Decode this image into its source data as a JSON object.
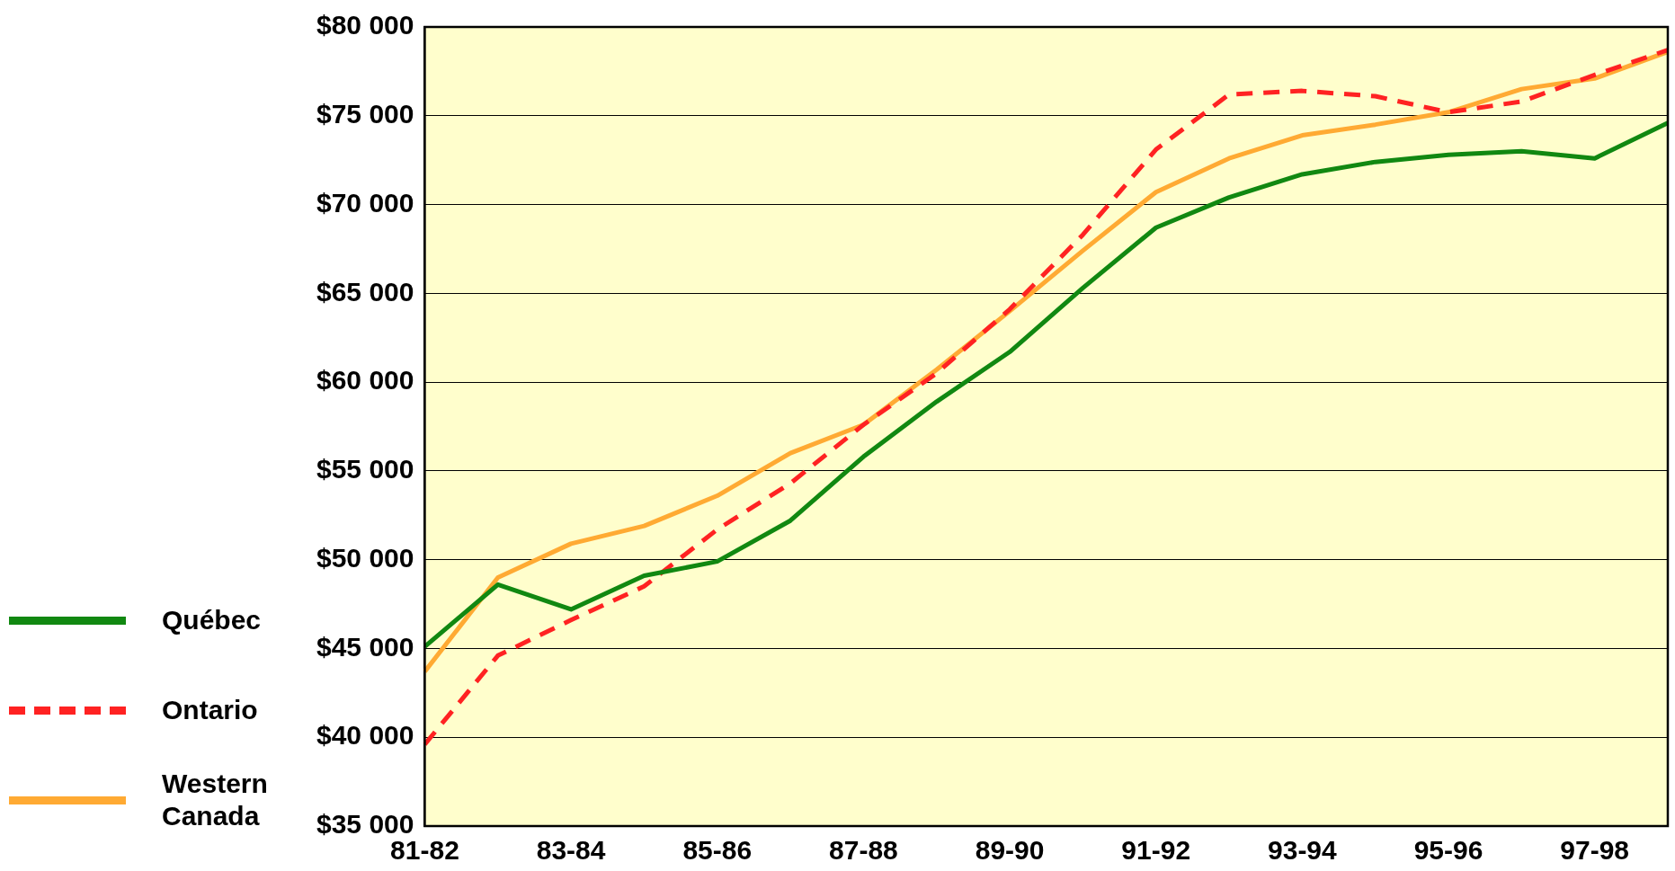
{
  "chart_data": {
    "type": "line",
    "categories": [
      "81-82",
      null,
      "83-84",
      null,
      "85-86",
      null,
      "87-88",
      null,
      "89-90",
      null,
      "91-92",
      null,
      "93-94",
      null,
      "95-96",
      null,
      "97-98",
      null
    ],
    "series": [
      {
        "name": "Québec",
        "color": "#118811",
        "line_style": "solid",
        "values": [
          45100,
          48600,
          47200,
          49100,
          49900,
          52200,
          55800,
          58900,
          61700,
          65300,
          68700,
          70400,
          71700,
          72400,
          72800,
          73000,
          72600,
          74600
        ]
      },
      {
        "name": "Ontario",
        "color": "#ff2222",
        "line_style": "dashed",
        "values": [
          39600,
          44600,
          46600,
          48500,
          51700,
          54300,
          57600,
          60500,
          64100,
          68300,
          73100,
          76200,
          76400,
          76100,
          75200,
          75800,
          77300,
          78700
        ]
      },
      {
        "name": "Western Canada",
        "color": "#ffaa33",
        "line_style": "solid",
        "values": [
          43700,
          49000,
          50900,
          51900,
          53600,
          56000,
          57600,
          60700,
          64000,
          67400,
          70700,
          72600,
          73900,
          74500,
          75200,
          76500,
          77100,
          78600
        ]
      }
    ],
    "ylim": [
      35000,
      80000
    ],
    "yticks": [
      {
        "value": 35000,
        "label": "$35 000"
      },
      {
        "value": 40000,
        "label": "$40 000"
      },
      {
        "value": 45000,
        "label": "$45 000"
      },
      {
        "value": 50000,
        "label": "$50 000"
      },
      {
        "value": 55000,
        "label": "$55 000"
      },
      {
        "value": 60000,
        "label": "$60 000"
      },
      {
        "value": 65000,
        "label": "$65 000"
      },
      {
        "value": 70000,
        "label": "$70 000"
      },
      {
        "value": 75000,
        "label": "$75 000"
      },
      {
        "value": 80000,
        "label": "$80 000"
      }
    ],
    "grid": "y",
    "legend": "left",
    "marker": "none"
  }
}
